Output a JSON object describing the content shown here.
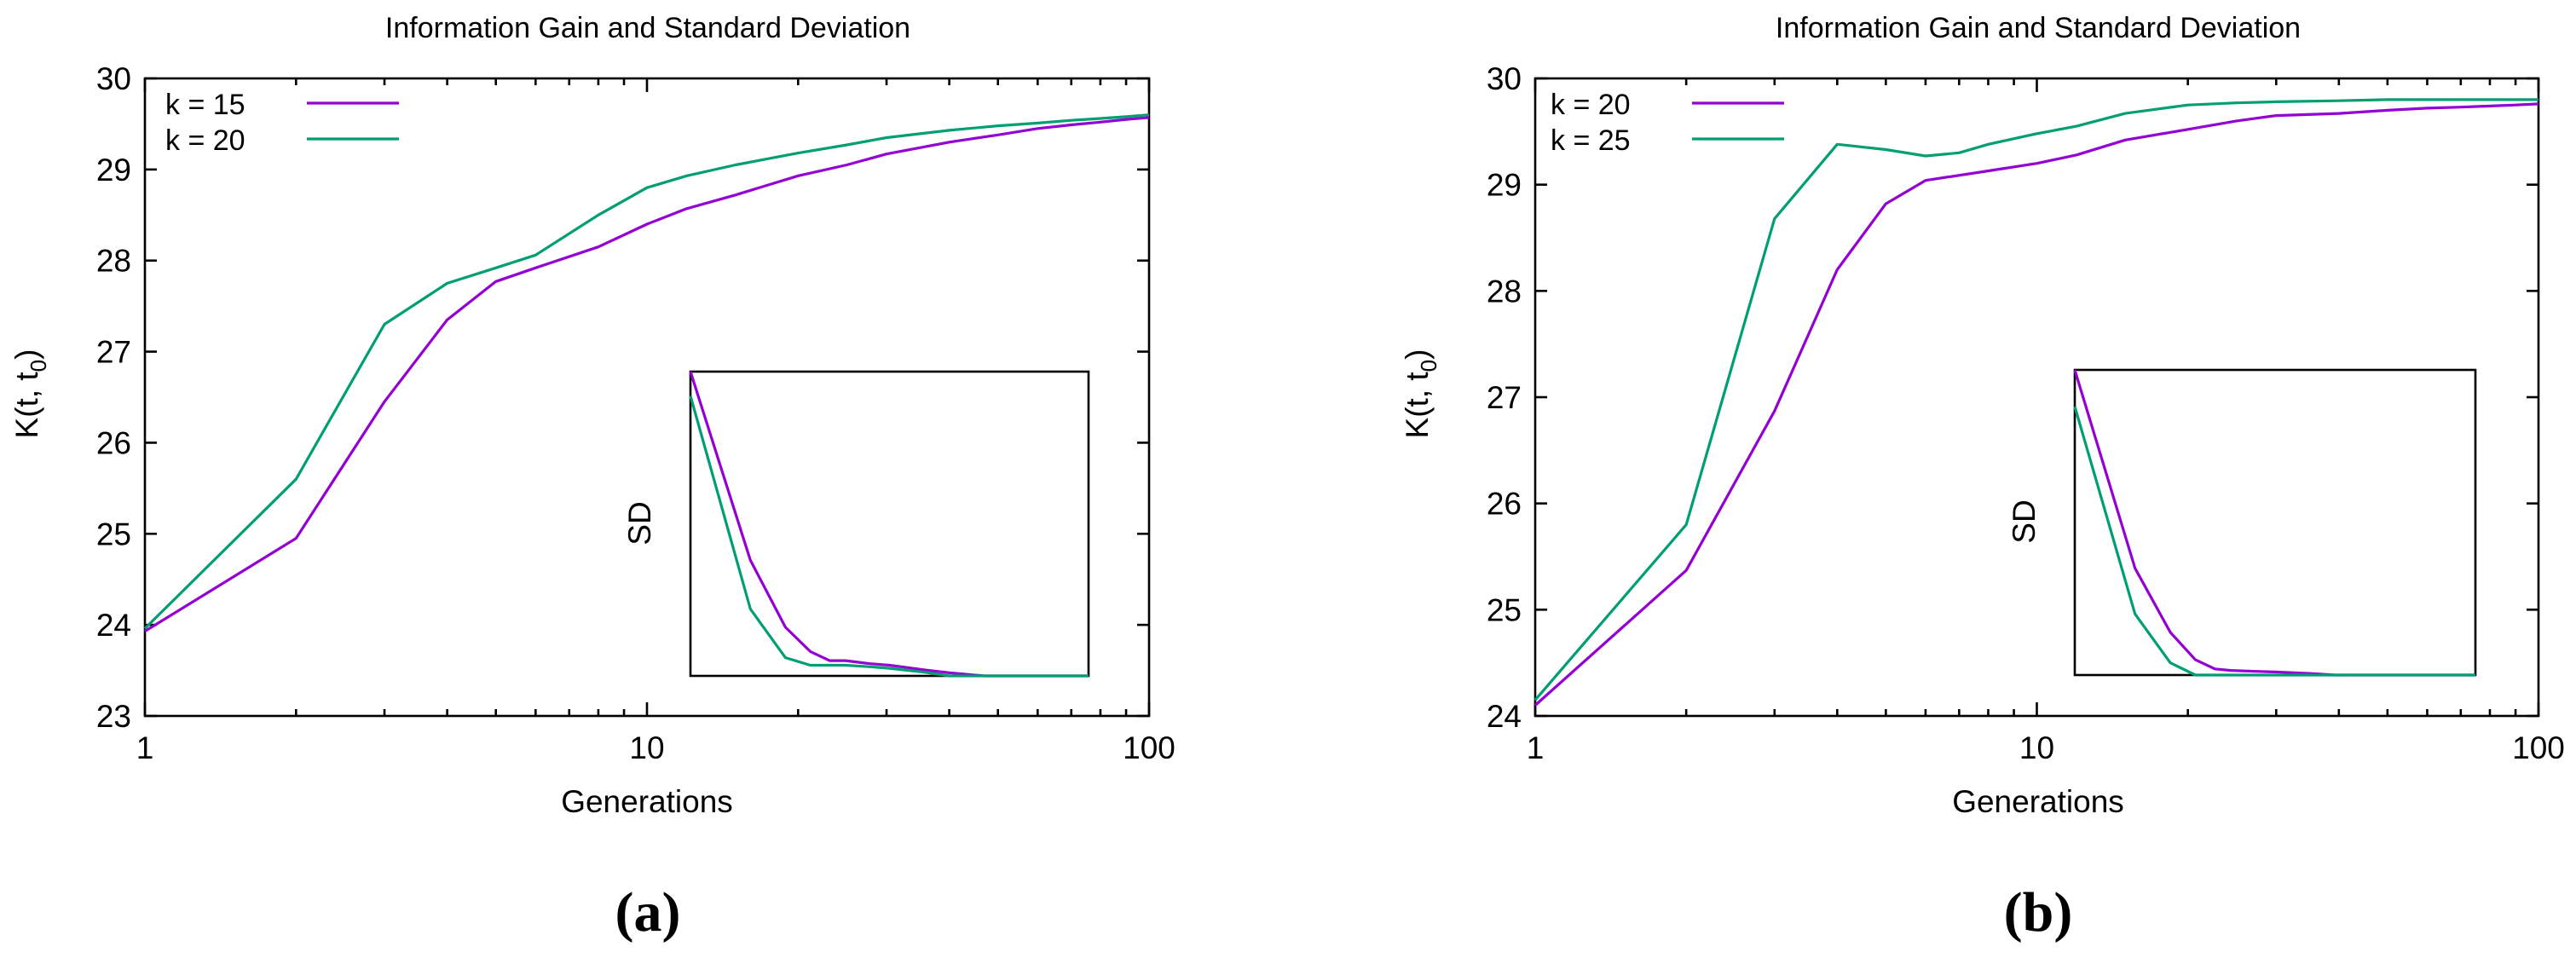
{
  "colors": {
    "k_purple": "#9400d3",
    "k_green": "#009e73"
  },
  "chart_data": [
    {
      "type": "line",
      "panel_id": "a",
      "caption": "(a)",
      "title": "Information Gain and Standard Deviation",
      "xlabel": "Generations",
      "ylabel_base": "K(t, t",
      "ylabel_sub": "0",
      "ylabel_end": ")",
      "xscale": "log",
      "xlim": [
        1,
        100
      ],
      "ylim": [
        23,
        30
      ],
      "xticks": [
        1,
        10,
        100
      ],
      "xtick_labels": [
        "1",
        "10",
        "100"
      ],
      "yticks": [
        23,
        24,
        25,
        26,
        27,
        28,
        29,
        30
      ],
      "ytick_labels": [
        "23",
        "24",
        "25",
        "26",
        "27",
        "28",
        "29",
        "30"
      ],
      "legend_position": "top-left",
      "series": [
        {
          "name": "k = 15",
          "color": "#9400d3",
          "x": [
            1,
            2,
            3,
            4,
            5,
            6,
            8,
            10,
            12,
            15,
            20,
            25,
            30,
            40,
            50,
            60,
            70,
            80,
            90,
            100
          ],
          "y": [
            23.93,
            24.95,
            26.45,
            27.35,
            27.77,
            27.92,
            28.15,
            28.4,
            28.57,
            28.72,
            28.93,
            29.05,
            29.17,
            29.3,
            29.38,
            29.45,
            29.49,
            29.52,
            29.55,
            29.57
          ]
        },
        {
          "name": "k = 20",
          "color": "#009e73",
          "x": [
            1,
            2,
            3,
            4,
            5,
            6,
            8,
            10,
            12,
            15,
            20,
            25,
            30,
            40,
            50,
            60,
            70,
            80,
            90,
            100
          ],
          "y": [
            23.96,
            25.6,
            27.3,
            27.75,
            27.92,
            28.06,
            28.5,
            28.8,
            28.93,
            29.05,
            29.18,
            29.27,
            29.35,
            29.43,
            29.48,
            29.51,
            29.54,
            29.56,
            29.58,
            29.6
          ]
        }
      ],
      "inset": {
        "ylabel": "SD",
        "series": [
          {
            "name": "k = 15",
            "color": "#9400d3",
            "x": [
              1,
              2,
              3,
              4,
              5,
              6,
              8,
              10,
              15,
              20,
              30,
              50,
              100
            ],
            "y": [
              1.0,
              0.38,
              0.16,
              0.08,
              0.05,
              0.05,
              0.04,
              0.035,
              0.02,
              0.01,
              0.0,
              0.0,
              0.0
            ]
          },
          {
            "name": "k = 20",
            "color": "#009e73",
            "x": [
              1,
              2,
              3,
              4,
              5,
              6,
              8,
              10,
              15,
              20,
              30,
              50,
              100
            ],
            "y": [
              0.92,
              0.22,
              0.06,
              0.035,
              0.035,
              0.035,
              0.03,
              0.025,
              0.012,
              0.0,
              0.0,
              0.0,
              0.0
            ]
          }
        ]
      }
    },
    {
      "type": "line",
      "panel_id": "b",
      "caption": "(b)",
      "title": "Information Gain and Standard Deviation",
      "xlabel": "Generations",
      "ylabel_base": "K(t, t",
      "ylabel_sub": "0",
      "ylabel_end": ")",
      "xscale": "log",
      "xlim": [
        1,
        100
      ],
      "ylim": [
        24,
        30
      ],
      "xticks": [
        1,
        10,
        100
      ],
      "xtick_labels": [
        "1",
        "10",
        "100"
      ],
      "yticks": [
        24,
        25,
        26,
        27,
        28,
        29,
        30
      ],
      "ytick_labels": [
        "24",
        "25",
        "26",
        "27",
        "28",
        "29",
        "30"
      ],
      "legend_position": "top-left",
      "series": [
        {
          "name": "k = 20",
          "color": "#9400d3",
          "x": [
            1,
            2,
            3,
            4,
            5,
            6,
            8,
            10,
            12,
            15,
            20,
            25,
            30,
            40,
            50,
            60,
            70,
            80,
            90,
            100
          ],
          "y": [
            24.1,
            25.37,
            26.87,
            28.2,
            28.82,
            29.04,
            29.13,
            29.2,
            29.28,
            29.42,
            29.52,
            29.6,
            29.65,
            29.67,
            29.7,
            29.72,
            29.73,
            29.74,
            29.75,
            29.76
          ]
        },
        {
          "name": "k = 25",
          "color": "#009e73",
          "x": [
            1,
            2,
            3,
            4,
            5,
            6,
            7,
            8,
            10,
            12,
            15,
            20,
            25,
            30,
            40,
            50,
            60,
            70,
            80,
            90,
            100
          ],
          "y": [
            24.15,
            25.8,
            28.68,
            29.38,
            29.33,
            29.27,
            29.3,
            29.38,
            29.48,
            29.55,
            29.67,
            29.75,
            29.77,
            29.78,
            29.79,
            29.8,
            29.8,
            29.8,
            29.8,
            29.8,
            29.8
          ]
        }
      ],
      "inset": {
        "ylabel": "SD",
        "series": [
          {
            "name": "k = 20",
            "color": "#9400d3",
            "x": [
              1,
              2,
              3,
              4,
              5,
              6,
              8,
              10,
              15,
              20,
              30,
              50,
              100
            ],
            "y": [
              1.0,
              0.35,
              0.14,
              0.05,
              0.02,
              0.015,
              0.012,
              0.01,
              0.005,
              0.0,
              0.0,
              0.0,
              0.0
            ]
          },
          {
            "name": "k = 25",
            "color": "#009e73",
            "x": [
              1,
              2,
              3,
              4,
              5,
              6,
              8,
              10,
              15,
              20,
              30,
              50,
              100
            ],
            "y": [
              0.88,
              0.2,
              0.04,
              0.0,
              0.0,
              0.0,
              0.0,
              0.0,
              0.0,
              0.0,
              0.0,
              0.0,
              0.0
            ]
          }
        ]
      }
    }
  ]
}
